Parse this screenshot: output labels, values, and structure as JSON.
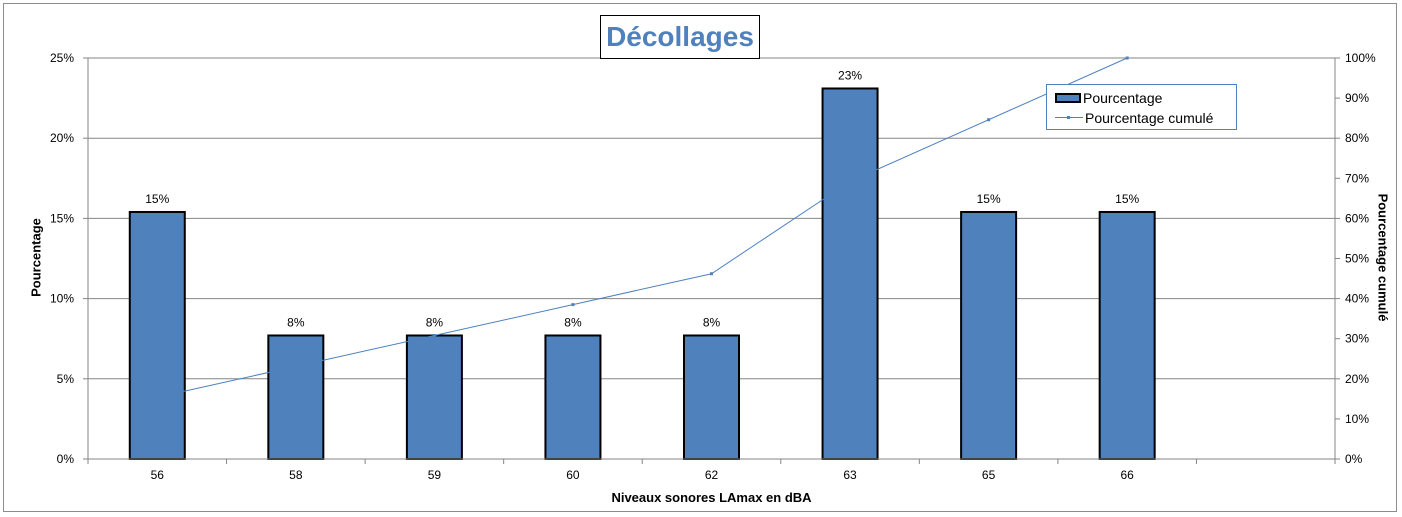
{
  "chart_data": {
    "type": "bar",
    "title": "Décollages",
    "xlabel": "Niveaux sonores LAmax en dBA",
    "ylabel": "Pourcentage",
    "y2label": "Pourcentage cumulé",
    "categories": [
      "56",
      "58",
      "59",
      "60",
      "62",
      "63",
      "65",
      "66"
    ],
    "series": [
      {
        "name": "Pourcentage",
        "kind": "bar",
        "axis": "left",
        "values": [
          15.4,
          7.7,
          7.7,
          7.7,
          7.7,
          23.1,
          15.4,
          15.4
        ],
        "labels": [
          "15%",
          "8%",
          "8%",
          "8%",
          "8%",
          "23%",
          "15%",
          "15%"
        ]
      },
      {
        "name": "Pourcentage cumulé",
        "kind": "line",
        "axis": "right",
        "values": [
          15.4,
          23.1,
          30.8,
          38.5,
          46.2,
          69.2,
          84.6,
          100.0
        ]
      }
    ],
    "ylim": [
      0,
      25
    ],
    "y_ticks": [
      "0%",
      "5%",
      "10%",
      "15%",
      "20%",
      "25%"
    ],
    "y2lim": [
      0,
      100
    ],
    "y2_ticks": [
      "0%",
      "10%",
      "20%",
      "30%",
      "40%",
      "50%",
      "60%",
      "70%",
      "80%",
      "90%",
      "100%"
    ],
    "grid": true,
    "legend_position": "top-right",
    "colors": {
      "bar_fill": "#4f81bd",
      "bar_border": "#000000",
      "line": "#4f81bd",
      "grid": "#868686"
    }
  }
}
